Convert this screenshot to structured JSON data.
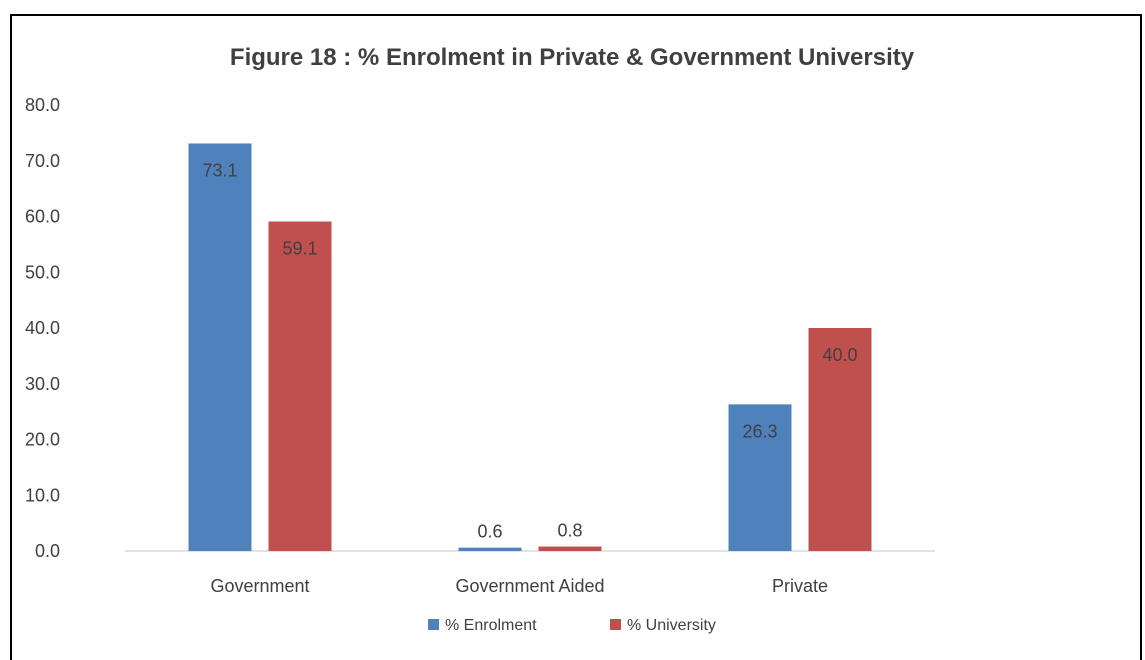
{
  "chart_data": {
    "type": "bar",
    "title": "Figure 18 : % Enrolment in Private & Government University",
    "xlabel": "",
    "ylabel": "",
    "categories": [
      "Government",
      "Government Aided",
      "Private"
    ],
    "series": [
      {
        "name": "% Enrolment",
        "values": [
          73.1,
          0.6,
          26.3
        ],
        "color": "#4F81BD"
      },
      {
        "name": "% University",
        "values": [
          59.1,
          0.8,
          40.0
        ],
        "color": "#C0504D"
      }
    ],
    "ylim": [
      0,
      80
    ],
    "yticks": [
      "0.0",
      "10.0",
      "20.0",
      "30.0",
      "40.0",
      "50.0",
      "60.0",
      "70.0",
      "80.0"
    ],
    "grid": false,
    "legend": "bottom",
    "data_labels": true
  }
}
